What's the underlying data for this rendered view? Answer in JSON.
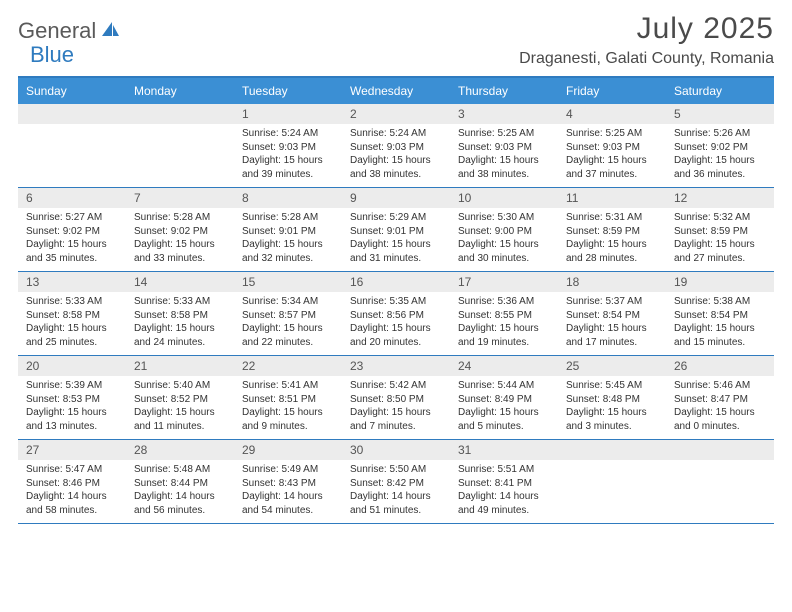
{
  "logo": {
    "general": "General",
    "blue": "Blue"
  },
  "title": "July 2025",
  "location": "Draganesti, Galati County, Romania",
  "colors": {
    "accent": "#3b8fd4",
    "border": "#2f7bbf",
    "daybg": "#ececec",
    "text": "#333",
    "hdrtext": "#4a4a4a"
  },
  "dayHeaders": [
    "Sunday",
    "Monday",
    "Tuesday",
    "Wednesday",
    "Thursday",
    "Friday",
    "Saturday"
  ],
  "weeks": [
    [
      {
        "n": "",
        "sr": "",
        "ss": "",
        "dl": ""
      },
      {
        "n": "",
        "sr": "",
        "ss": "",
        "dl": ""
      },
      {
        "n": "1",
        "sr": "Sunrise: 5:24 AM",
        "ss": "Sunset: 9:03 PM",
        "dl": "Daylight: 15 hours and 39 minutes."
      },
      {
        "n": "2",
        "sr": "Sunrise: 5:24 AM",
        "ss": "Sunset: 9:03 PM",
        "dl": "Daylight: 15 hours and 38 minutes."
      },
      {
        "n": "3",
        "sr": "Sunrise: 5:25 AM",
        "ss": "Sunset: 9:03 PM",
        "dl": "Daylight: 15 hours and 38 minutes."
      },
      {
        "n": "4",
        "sr": "Sunrise: 5:25 AM",
        "ss": "Sunset: 9:03 PM",
        "dl": "Daylight: 15 hours and 37 minutes."
      },
      {
        "n": "5",
        "sr": "Sunrise: 5:26 AM",
        "ss": "Sunset: 9:02 PM",
        "dl": "Daylight: 15 hours and 36 minutes."
      }
    ],
    [
      {
        "n": "6",
        "sr": "Sunrise: 5:27 AM",
        "ss": "Sunset: 9:02 PM",
        "dl": "Daylight: 15 hours and 35 minutes."
      },
      {
        "n": "7",
        "sr": "Sunrise: 5:28 AM",
        "ss": "Sunset: 9:02 PM",
        "dl": "Daylight: 15 hours and 33 minutes."
      },
      {
        "n": "8",
        "sr": "Sunrise: 5:28 AM",
        "ss": "Sunset: 9:01 PM",
        "dl": "Daylight: 15 hours and 32 minutes."
      },
      {
        "n": "9",
        "sr": "Sunrise: 5:29 AM",
        "ss": "Sunset: 9:01 PM",
        "dl": "Daylight: 15 hours and 31 minutes."
      },
      {
        "n": "10",
        "sr": "Sunrise: 5:30 AM",
        "ss": "Sunset: 9:00 PM",
        "dl": "Daylight: 15 hours and 30 minutes."
      },
      {
        "n": "11",
        "sr": "Sunrise: 5:31 AM",
        "ss": "Sunset: 8:59 PM",
        "dl": "Daylight: 15 hours and 28 minutes."
      },
      {
        "n": "12",
        "sr": "Sunrise: 5:32 AM",
        "ss": "Sunset: 8:59 PM",
        "dl": "Daylight: 15 hours and 27 minutes."
      }
    ],
    [
      {
        "n": "13",
        "sr": "Sunrise: 5:33 AM",
        "ss": "Sunset: 8:58 PM",
        "dl": "Daylight: 15 hours and 25 minutes."
      },
      {
        "n": "14",
        "sr": "Sunrise: 5:33 AM",
        "ss": "Sunset: 8:58 PM",
        "dl": "Daylight: 15 hours and 24 minutes."
      },
      {
        "n": "15",
        "sr": "Sunrise: 5:34 AM",
        "ss": "Sunset: 8:57 PM",
        "dl": "Daylight: 15 hours and 22 minutes."
      },
      {
        "n": "16",
        "sr": "Sunrise: 5:35 AM",
        "ss": "Sunset: 8:56 PM",
        "dl": "Daylight: 15 hours and 20 minutes."
      },
      {
        "n": "17",
        "sr": "Sunrise: 5:36 AM",
        "ss": "Sunset: 8:55 PM",
        "dl": "Daylight: 15 hours and 19 minutes."
      },
      {
        "n": "18",
        "sr": "Sunrise: 5:37 AM",
        "ss": "Sunset: 8:54 PM",
        "dl": "Daylight: 15 hours and 17 minutes."
      },
      {
        "n": "19",
        "sr": "Sunrise: 5:38 AM",
        "ss": "Sunset: 8:54 PM",
        "dl": "Daylight: 15 hours and 15 minutes."
      }
    ],
    [
      {
        "n": "20",
        "sr": "Sunrise: 5:39 AM",
        "ss": "Sunset: 8:53 PM",
        "dl": "Daylight: 15 hours and 13 minutes."
      },
      {
        "n": "21",
        "sr": "Sunrise: 5:40 AM",
        "ss": "Sunset: 8:52 PM",
        "dl": "Daylight: 15 hours and 11 minutes."
      },
      {
        "n": "22",
        "sr": "Sunrise: 5:41 AM",
        "ss": "Sunset: 8:51 PM",
        "dl": "Daylight: 15 hours and 9 minutes."
      },
      {
        "n": "23",
        "sr": "Sunrise: 5:42 AM",
        "ss": "Sunset: 8:50 PM",
        "dl": "Daylight: 15 hours and 7 minutes."
      },
      {
        "n": "24",
        "sr": "Sunrise: 5:44 AM",
        "ss": "Sunset: 8:49 PM",
        "dl": "Daylight: 15 hours and 5 minutes."
      },
      {
        "n": "25",
        "sr": "Sunrise: 5:45 AM",
        "ss": "Sunset: 8:48 PM",
        "dl": "Daylight: 15 hours and 3 minutes."
      },
      {
        "n": "26",
        "sr": "Sunrise: 5:46 AM",
        "ss": "Sunset: 8:47 PM",
        "dl": "Daylight: 15 hours and 0 minutes."
      }
    ],
    [
      {
        "n": "27",
        "sr": "Sunrise: 5:47 AM",
        "ss": "Sunset: 8:46 PM",
        "dl": "Daylight: 14 hours and 58 minutes."
      },
      {
        "n": "28",
        "sr": "Sunrise: 5:48 AM",
        "ss": "Sunset: 8:44 PM",
        "dl": "Daylight: 14 hours and 56 minutes."
      },
      {
        "n": "29",
        "sr": "Sunrise: 5:49 AM",
        "ss": "Sunset: 8:43 PM",
        "dl": "Daylight: 14 hours and 54 minutes."
      },
      {
        "n": "30",
        "sr": "Sunrise: 5:50 AM",
        "ss": "Sunset: 8:42 PM",
        "dl": "Daylight: 14 hours and 51 minutes."
      },
      {
        "n": "31",
        "sr": "Sunrise: 5:51 AM",
        "ss": "Sunset: 8:41 PM",
        "dl": "Daylight: 14 hours and 49 minutes."
      },
      {
        "n": "",
        "sr": "",
        "ss": "",
        "dl": ""
      },
      {
        "n": "",
        "sr": "",
        "ss": "",
        "dl": ""
      }
    ]
  ]
}
